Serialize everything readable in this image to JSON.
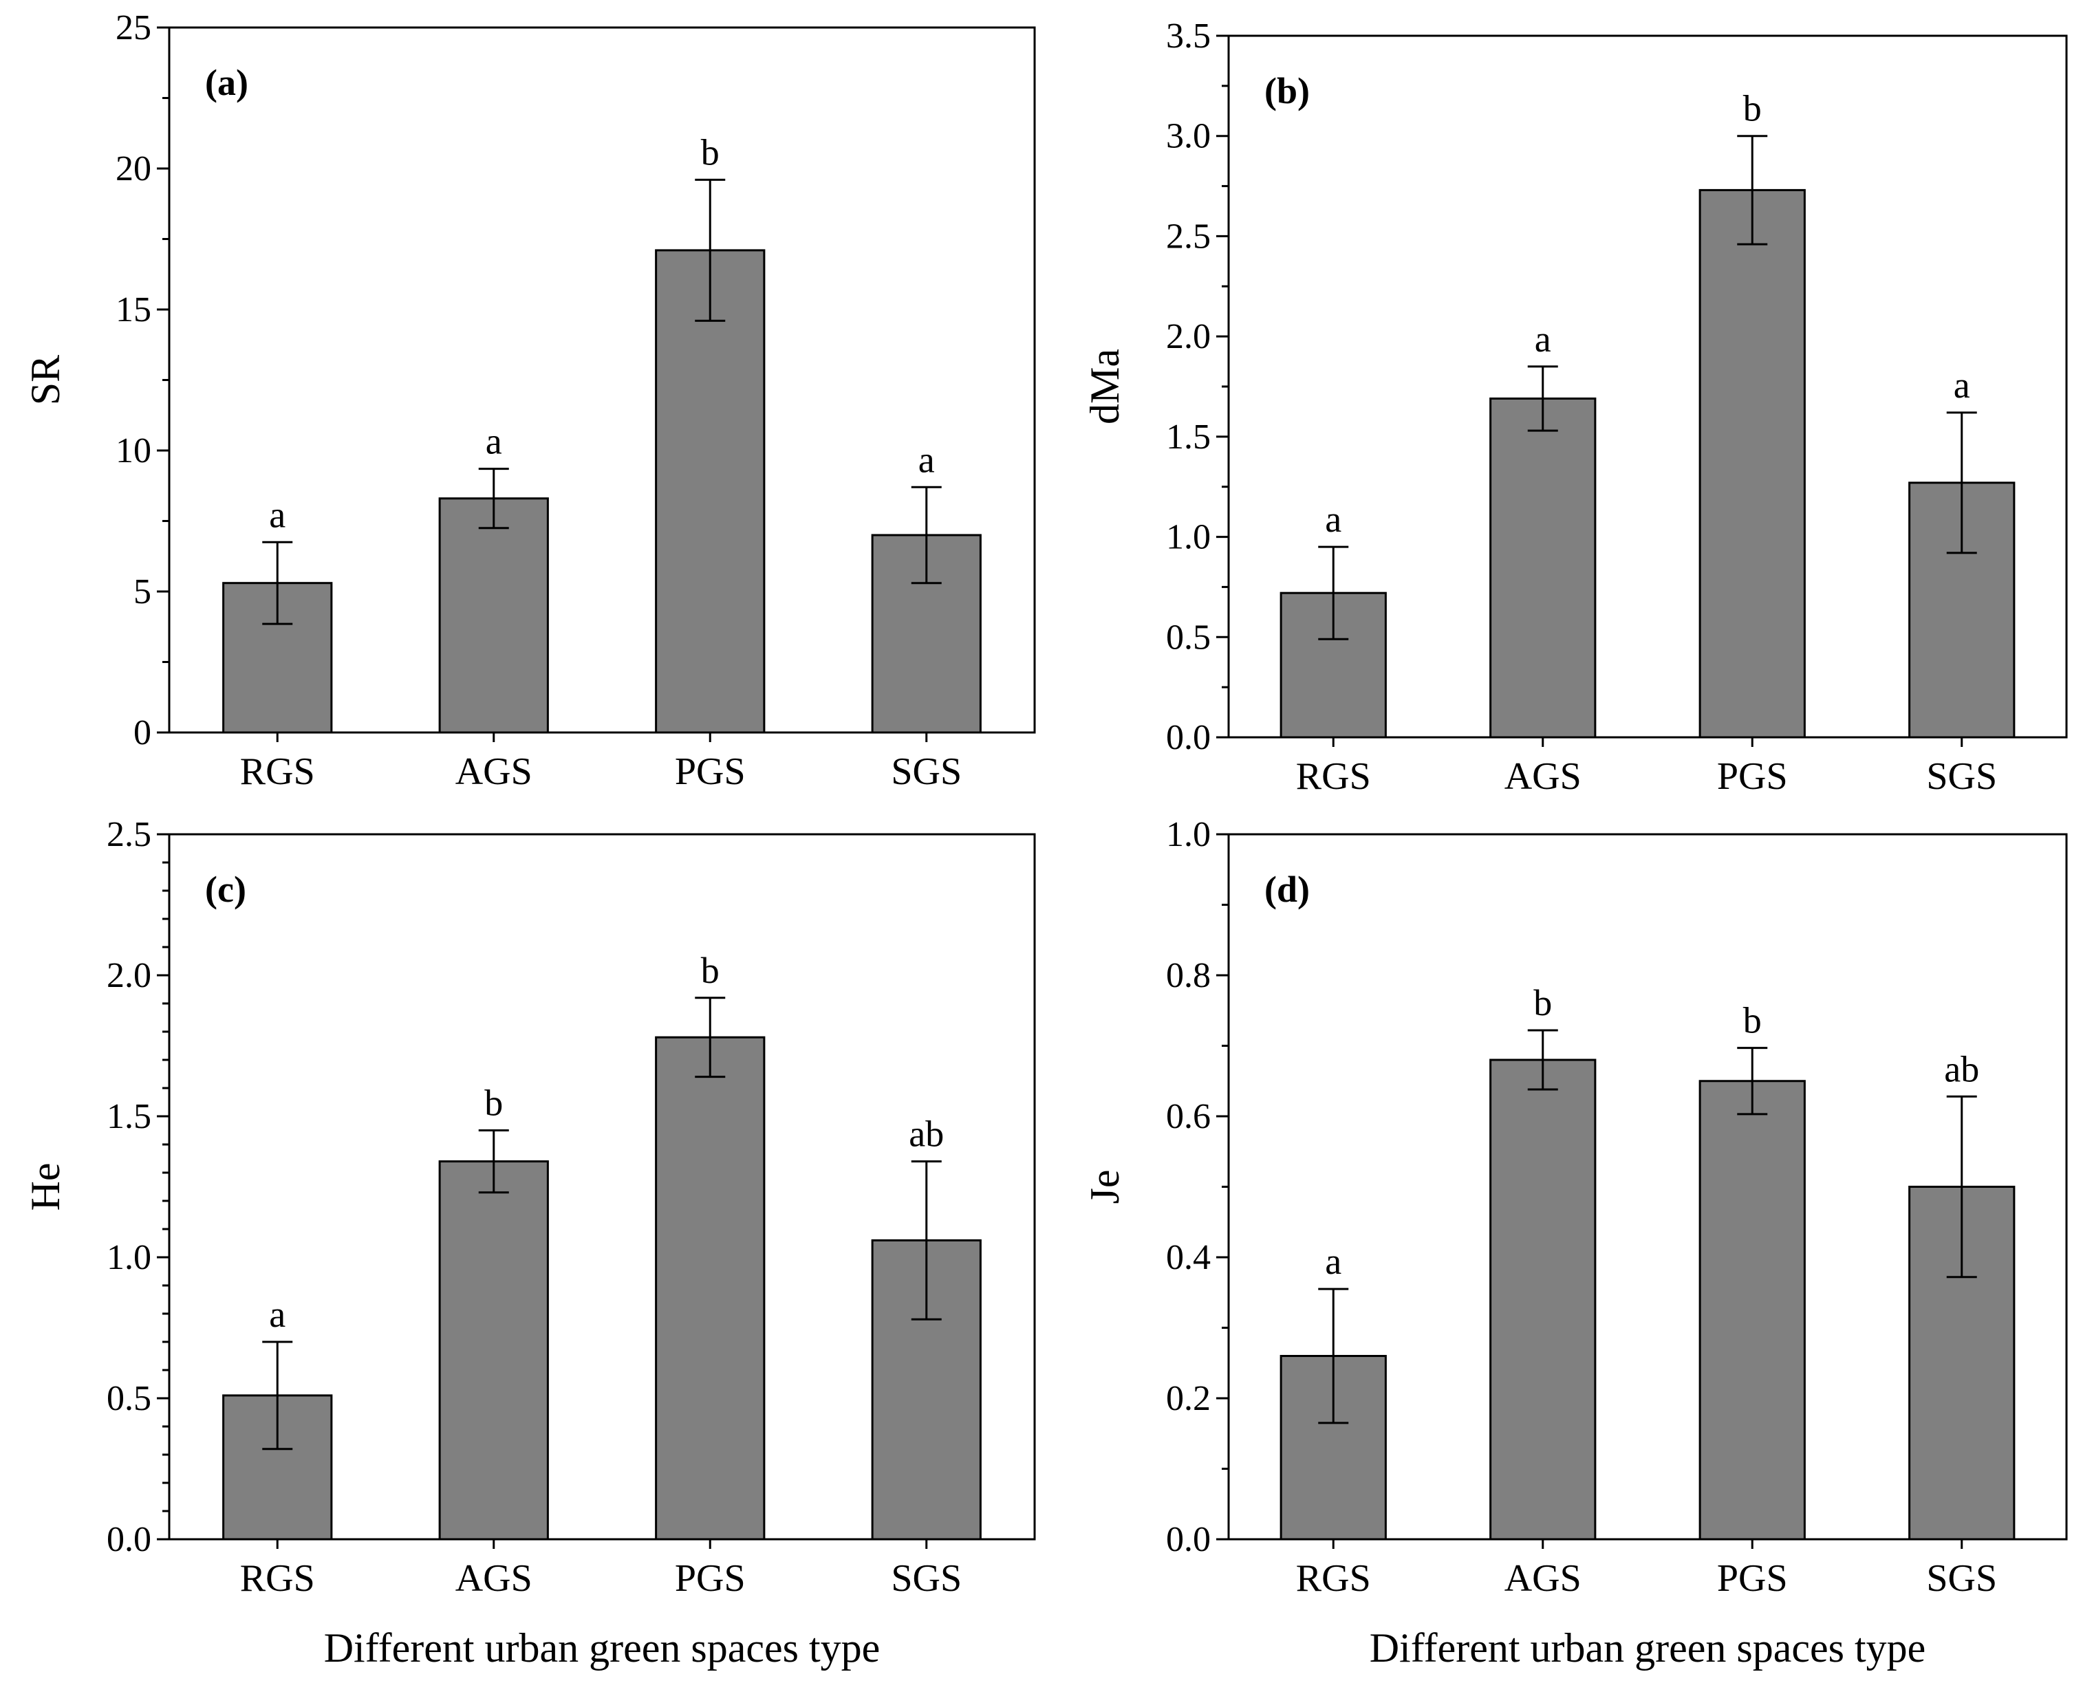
{
  "colors": {
    "bar_fill": "#808080",
    "bar_stroke": "#000000",
    "axis": "#000000"
  },
  "x_axis_title": "Different urban green spaces type",
  "chart_data": [
    {
      "type": "bar",
      "panel_label": "(a)",
      "ylabel": "SR",
      "xlabel": "",
      "categories": [
        "RGS",
        "AGS",
        "PGS",
        "SGS"
      ],
      "values": [
        5.3,
        8.3,
        17.1,
        7.0
      ],
      "errors": [
        1.45,
        1.05,
        2.5,
        1.7
      ],
      "significance": [
        "a",
        "a",
        "b",
        "a"
      ],
      "ylim": [
        0,
        25
      ],
      "yticks": [
        "0",
        "5",
        "10",
        "15",
        "20",
        "25"
      ],
      "ytick_values": [
        0,
        5,
        10,
        15,
        20,
        25
      ],
      "minor_step": 2.5
    },
    {
      "type": "bar",
      "panel_label": "(b)",
      "ylabel": "dMa",
      "xlabel": "",
      "categories": [
        "RGS",
        "AGS",
        "PGS",
        "SGS"
      ],
      "values": [
        0.72,
        1.69,
        2.73,
        1.27
      ],
      "errors": [
        0.23,
        0.16,
        0.27,
        0.35
      ],
      "significance": [
        "a",
        "a",
        "b",
        "a"
      ],
      "ylim": [
        0,
        3.5
      ],
      "yticks": [
        "0.0",
        "0.5",
        "1.0",
        "1.5",
        "2.0",
        "2.5",
        "3.0",
        "3.5"
      ],
      "ytick_values": [
        0,
        0.5,
        1.0,
        1.5,
        2.0,
        2.5,
        3.0,
        3.5
      ],
      "minor_step": 0.25
    },
    {
      "type": "bar",
      "panel_label": "(c)",
      "ylabel": "He",
      "xlabel": "Different urban green spaces type",
      "categories": [
        "RGS",
        "AGS",
        "PGS",
        "SGS"
      ],
      "values": [
        0.51,
        1.34,
        1.78,
        1.06
      ],
      "errors": [
        0.19,
        0.11,
        0.14,
        0.28
      ],
      "significance": [
        "a",
        "b",
        "b",
        "ab"
      ],
      "ylim": [
        0,
        2.5
      ],
      "yticks": [
        "0.0",
        "0.5",
        "1.0",
        "1.5",
        "2.0",
        "2.5"
      ],
      "ytick_values": [
        0,
        0.5,
        1.0,
        1.5,
        2.0,
        2.5
      ],
      "minor_step": 0.1
    },
    {
      "type": "bar",
      "panel_label": "(d)",
      "ylabel": "Je",
      "xlabel": "Different urban green spaces type",
      "categories": [
        "RGS",
        "AGS",
        "PGS",
        "SGS"
      ],
      "values": [
        0.26,
        0.68,
        0.65,
        0.5
      ],
      "errors": [
        0.095,
        0.042,
        0.047,
        0.128
      ],
      "significance": [
        "a",
        "b",
        "b",
        "ab"
      ],
      "ylim": [
        0,
        1.0
      ],
      "yticks": [
        "0.0",
        "0.2",
        "0.4",
        "0.6",
        "0.8",
        "1.0"
      ],
      "ytick_values": [
        0,
        0.2,
        0.4,
        0.6,
        0.8,
        1.0
      ],
      "minor_step": 0.1
    }
  ]
}
